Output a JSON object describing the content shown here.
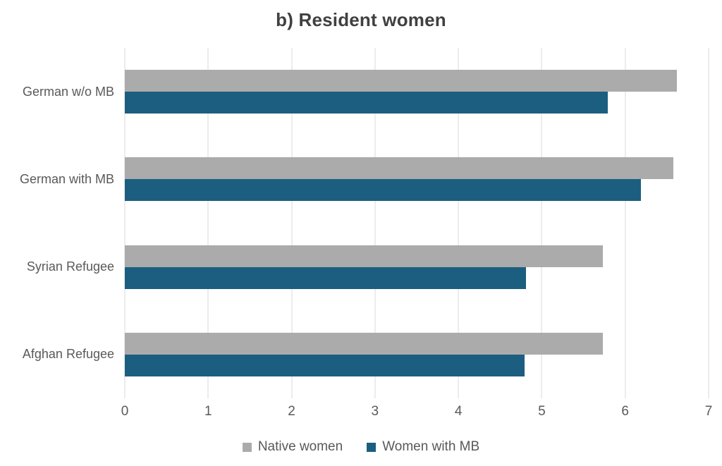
{
  "colors": {
    "background": "#FFFFFF",
    "gridline": "#D9D9D9",
    "axis_text": "#595959",
    "title_text": "#404040",
    "native_series": "#ABABAB",
    "mb_series": "#1B5E80"
  },
  "chart_data": {
    "type": "bar",
    "orientation": "horizontal",
    "title": "b) Resident women",
    "categories": [
      "German w/o MB",
      "German with MB",
      "Syrian Refugee",
      "Afghan Refugee"
    ],
    "series": [
      {
        "name": "Native women",
        "color": "#ABABAB",
        "values": [
          6.62,
          6.58,
          5.73,
          5.73
        ]
      },
      {
        "name": "Women with MB",
        "color": "#1B5E80",
        "values": [
          5.79,
          6.19,
          4.81,
          4.79
        ]
      }
    ],
    "xlabel": "",
    "ylabel": "",
    "xlim": [
      0,
      7
    ],
    "x_ticks": [
      0,
      1,
      2,
      3,
      4,
      5,
      6,
      7
    ],
    "grid": "vertical",
    "legend_position": "bottom"
  }
}
